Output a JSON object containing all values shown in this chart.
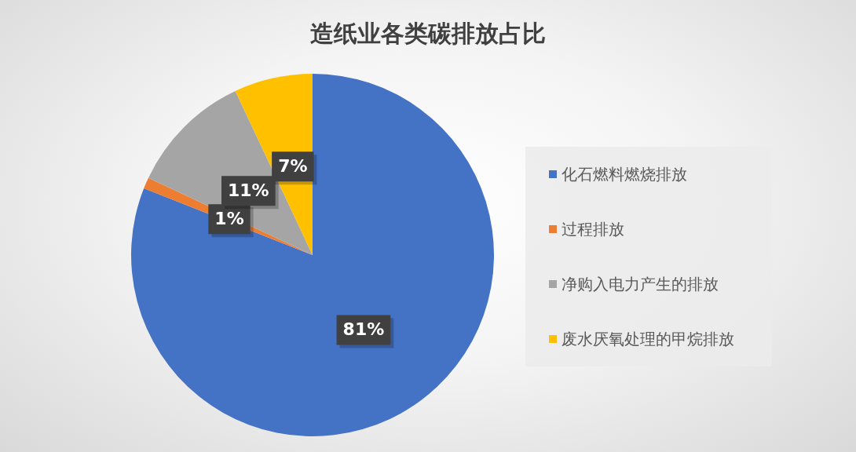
{
  "chart_data": {
    "type": "pie",
    "title": "造纸业各类碳排放占比",
    "categories": [
      "化石燃料燃烧排放",
      "过程排放",
      "净购入电力产生的排放",
      "废水厌氧处理的甲烷排放"
    ],
    "values": [
      81,
      1,
      11,
      7
    ],
    "colors": [
      "#4472c4",
      "#ed7d31",
      "#a5a5a5",
      "#ffc000"
    ],
    "value_labels": [
      "81%",
      "1%",
      "11%",
      "7%"
    ],
    "legend": "right"
  }
}
